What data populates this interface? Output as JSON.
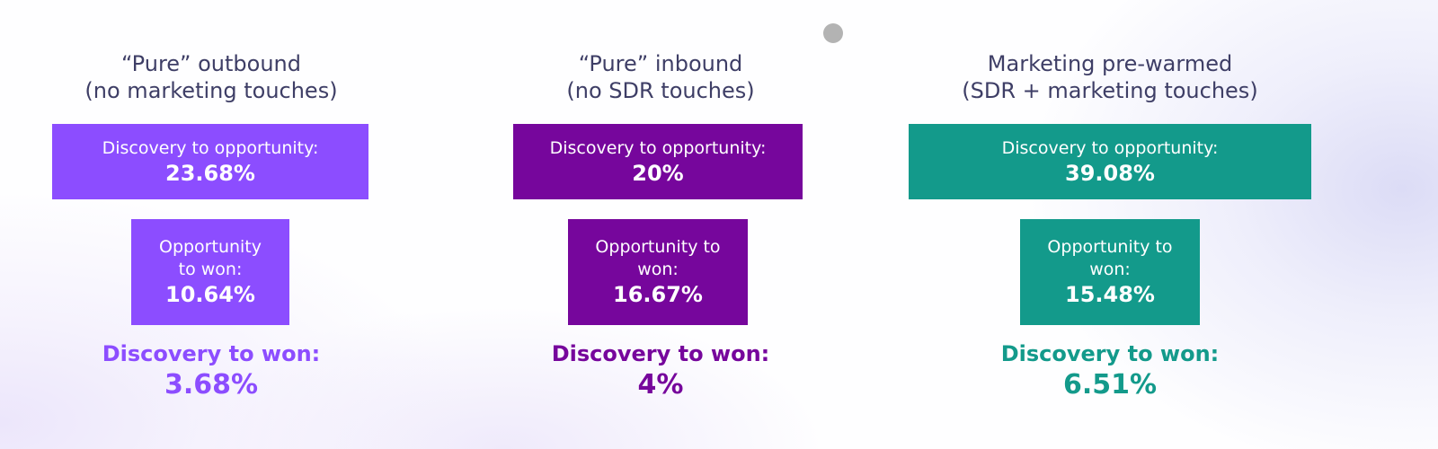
{
  "columns": [
    {
      "title_line1": "“Pure” outbound",
      "title_line2": "(no marketing touches)",
      "color": "#8c4dff",
      "box1_label": "Discovery to opportunity:",
      "box1_value": "23.68%",
      "box2_label_line1": "Opportunity",
      "box2_label_line2": "to won:",
      "box2_value": "10.64%",
      "summary_label": "Discovery to won:",
      "summary_value": "3.68%"
    },
    {
      "title_line1": "“Pure” inbound",
      "title_line2": "(no SDR touches)",
      "color": "#76069c",
      "box1_label": "Discovery to opportunity:",
      "box1_value": "20%",
      "box2_label_line1": "Opportunity to",
      "box2_label_line2": "won:",
      "box2_value": "16.67%",
      "summary_label": "Discovery to won:",
      "summary_value": "4%"
    },
    {
      "title_line1": "Marketing pre-warmed",
      "title_line2": "(SDR + marketing touches)",
      "color": "#139a8b",
      "box1_label": "Discovery to opportunity:",
      "box1_value": "39.08%",
      "box2_label_line1": "Opportunity to",
      "box2_label_line2": "won:",
      "box2_value": "15.48%",
      "summary_label": "Discovery to won:",
      "summary_value": "6.51%"
    }
  ]
}
